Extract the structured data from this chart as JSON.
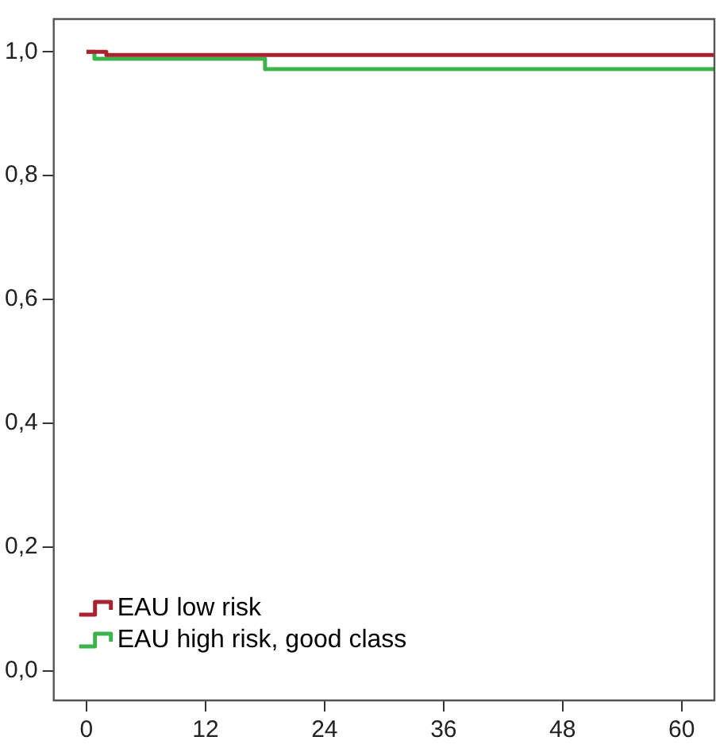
{
  "chart_data": {
    "type": "step",
    "xlim": [
      -3.3,
      63.3
    ],
    "xticks": [
      0,
      12,
      24,
      36,
      48,
      60
    ],
    "ylim": [
      -0.048,
      1.053
    ],
    "yticks": [
      {
        "value": 0,
        "label": "0,0"
      },
      {
        "value": 0.2,
        "label": "0,2"
      },
      {
        "value": 0.4,
        "label": "0,4"
      },
      {
        "value": 0.6,
        "label": "0,6"
      },
      {
        "value": 0.8,
        "label": "0,8"
      },
      {
        "value": 1,
        "label": "1,0"
      }
    ],
    "grid": false,
    "legend": "bottom left",
    "marker": "none",
    "line_style": "solid",
    "series": [
      {
        "name": "EAU low risk",
        "color": "#a8232f",
        "x": [
          0,
          2,
          63.3
        ],
        "values": [
          1,
          0.995,
          0.995
        ]
      },
      {
        "name": "EAU high risk, good class",
        "color": "#3cb44b",
        "x": [
          0,
          0.8,
          18,
          63.3
        ],
        "values": [
          1,
          0.989,
          0.972,
          0.972
        ]
      }
    ]
  }
}
